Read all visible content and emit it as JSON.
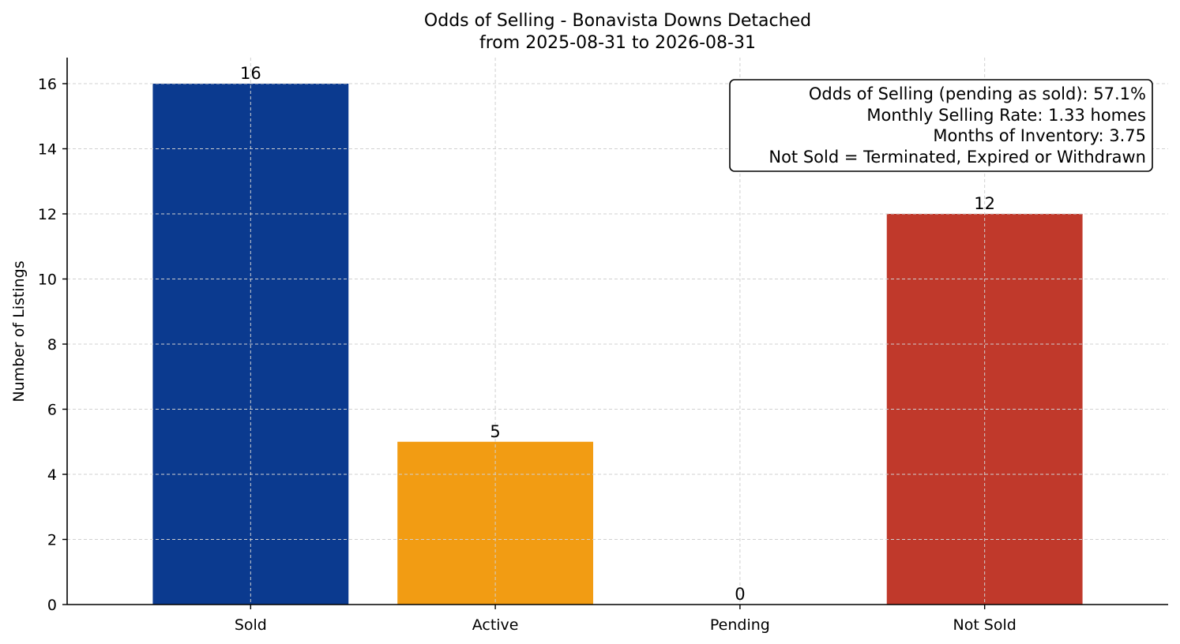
{
  "chart_data": {
    "type": "bar",
    "title": "Odds of Selling - Bonavista Downs Detached",
    "subtitle": "from 2025-08-31 to 2026-08-31",
    "xlabel": "",
    "ylabel": "Number of Listings",
    "categories": [
      "Sold",
      "Active",
      "Pending",
      "Not Sold"
    ],
    "values": [
      16,
      5,
      0,
      12
    ],
    "colors": [
      "#0b3a8f",
      "#f29c13",
      "#f29c13",
      "#c0392b"
    ],
    "data_labels": [
      "16",
      "5",
      "0",
      "12"
    ],
    "ylim": [
      0,
      16.8
    ],
    "yticks": [
      0,
      2,
      4,
      6,
      8,
      10,
      12,
      14,
      16
    ],
    "ytick_labels": [
      "0",
      "2",
      "4",
      "6",
      "8",
      "10",
      "12",
      "14",
      "16"
    ],
    "grid": true,
    "annotation": {
      "lines": [
        "Odds of Selling (pending as sold): 57.1%",
        "Monthly Selling Rate: 1.33 homes",
        "Months of Inventory: 3.75",
        "Not Sold = Terminated, Expired or Withdrawn"
      ],
      "placement": "top-right"
    }
  }
}
